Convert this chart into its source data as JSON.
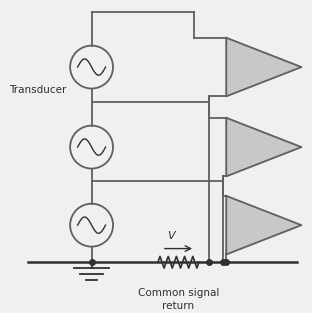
{
  "bg_color": "#f0f0f0",
  "line_color": "#606060",
  "dark_color": "#303030",
  "fill_color": "#c8c8c8",
  "transducer_label": "Transducer",
  "bottom_label_1": "Common signal",
  "bottom_label_2": "return",
  "voltage_label": "V"
}
